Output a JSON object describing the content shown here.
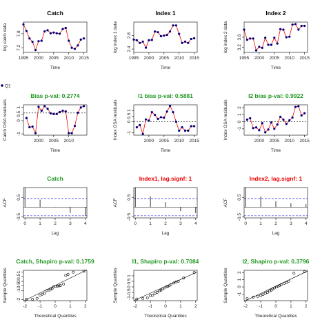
{
  "colors": {
    "green": "#229922",
    "red": "#ee0000",
    "black": "#000000",
    "blue": "#0000dd",
    "navy": "#000060",
    "pointfill": "#000080"
  },
  "legend": {
    "label": "Q1"
  },
  "chart_data": [
    {
      "type": "line",
      "title": "Catch",
      "title_color": "black",
      "xlabel": "Time",
      "ylabel": "log catch data",
      "xlim": [
        1995,
        2016
      ],
      "ylim": [
        7.0,
        8.3
      ],
      "xticks": [
        1995,
        2000,
        2005,
        2010,
        2015
      ],
      "yticks": [
        7.2,
        7.8
      ],
      "x": [
        1995,
        1996,
        1997,
        1998,
        1999,
        2000,
        2001,
        2002,
        2003,
        2004,
        2005,
        2006,
        2007,
        2008,
        2009,
        2010,
        2011,
        2012,
        2013,
        2014,
        2015
      ],
      "y": [
        8.2,
        7.92,
        7.6,
        7.45,
        7.1,
        7.48,
        7.5,
        7.9,
        7.95,
        7.82,
        7.85,
        7.82,
        7.8,
        8.0,
        8.05,
        7.5,
        7.2,
        7.15,
        7.3,
        7.55,
        7.6
      ]
    },
    {
      "type": "line",
      "title": "Index 1",
      "title_color": "black",
      "xlabel": "Time",
      "ylabel": "log index 1 data",
      "xlim": [
        1995,
        2016
      ],
      "ylim": [
        2.3,
        3.2
      ],
      "xticks": [
        1995,
        2000,
        2005,
        2010,
        2015
      ],
      "yticks": [
        2.4,
        2.8
      ],
      "x": [
        1995,
        1996,
        1997,
        1998,
        1999,
        2000,
        2001,
        2002,
        2003,
        2004,
        2005,
        2006,
        2007,
        2008,
        2009,
        2010,
        2011,
        2012,
        2013,
        2014,
        2015
      ],
      "y": [
        2.68,
        2.66,
        2.58,
        2.62,
        2.44,
        2.66,
        2.67,
        2.92,
        2.9,
        2.78,
        2.8,
        2.82,
        2.92,
        3.1,
        3.1,
        2.85,
        2.58,
        2.62,
        2.58,
        2.7,
        2.72
      ]
    },
    {
      "type": "line",
      "title": "Index 2",
      "title_color": "black",
      "xlabel": "Time",
      "ylabel": "log index 2 data",
      "xlim": [
        1995,
        2016
      ],
      "ylim": [
        3.0,
        4.2
      ],
      "xticks": [
        1995,
        2000,
        2005,
        2010,
        2015
      ],
      "yticks": [
        3.2,
        3.6
      ],
      "x": [
        1995,
        1996,
        1997,
        1998,
        1999,
        2000,
        2001,
        2002,
        2003,
        2004,
        2005,
        2006,
        2007,
        2008,
        2009,
        2010,
        2011,
        2012,
        2013,
        2014,
        2015
      ],
      "y": [
        3.9,
        3.5,
        3.55,
        3.55,
        3.08,
        3.22,
        3.18,
        3.58,
        3.3,
        3.3,
        3.58,
        3.35,
        3.92,
        3.9,
        3.6,
        3.62,
        4.1,
        4.12,
        3.9,
        4.05,
        4.05
      ]
    },
    {
      "type": "line",
      "title": "Bias p-val: 0.2774",
      "title_color": "green",
      "xlabel": "Time",
      "ylabel": "Catch OSA residuals",
      "xlim": [
        1995,
        2016
      ],
      "ylim": [
        -1.1,
        1.2
      ],
      "xticks": [
        2000,
        2005,
        2010
      ],
      "yticks": [
        -1.0,
        0.0,
        0.5,
        1.0
      ],
      "x": [
        1996,
        1997,
        1998,
        1999,
        2000,
        2001,
        2002,
        2003,
        2004,
        2005,
        2006,
        2007,
        2008,
        2009,
        2010,
        2011,
        2012,
        2013,
        2014,
        2015
      ],
      "y": [
        0.2,
        -0.5,
        -0.45,
        -0.95,
        1.05,
        0.75,
        1.1,
        0.9,
        0.55,
        0.5,
        0.5,
        0.65,
        0.75,
        0.7,
        -0.95,
        -0.95,
        -0.4,
        0.6,
        1.0,
        1.1
      ],
      "hline": 0.58
    },
    {
      "type": "line",
      "title": "I1 bias p-val: 0.5881",
      "title_color": "green",
      "xlabel": "Time",
      "ylabel": "Index OSA residuals",
      "xlim": [
        1995,
        2016
      ],
      "ylim": [
        -1.2,
        1.5
      ],
      "xticks": [
        2000,
        2005,
        2010,
        2015
      ],
      "yticks": [
        -1.0,
        0.0,
        0.5,
        1.0
      ],
      "x": [
        1996,
        1997,
        1998,
        1999,
        2000,
        2001,
        2002,
        2003,
        2004,
        2005,
        2006,
        2007,
        2008,
        2009,
        2010,
        2011,
        2012,
        2013,
        2014,
        2015
      ],
      "y": [
        -0.5,
        -0.3,
        -1.1,
        0.2,
        0.1,
        0.85,
        0.6,
        0.25,
        0.4,
        0.35,
        0.9,
        1.4,
        0.85,
        0.0,
        -0.8,
        -0.5,
        -0.8,
        -0.8,
        -0.4,
        -0.4
      ],
      "hline": 0.0
    },
    {
      "type": "line",
      "title": "I2 bias p-val: 0.9922",
      "title_color": "green",
      "xlabel": "Time",
      "ylabel": "Index OSA residuals",
      "xlim": [
        1995,
        2016
      ],
      "ylim": [
        -1.9,
        2.4
      ],
      "xticks": [
        2000,
        2005,
        2010,
        2015
      ],
      "yticks": [
        -1,
        0,
        1,
        2
      ],
      "x": [
        1996,
        1997,
        1998,
        1999,
        2000,
        2001,
        2002,
        2003,
        2004,
        2005,
        2006,
        2007,
        2008,
        2009,
        2010,
        2011,
        2012,
        2013,
        2014,
        2015
      ],
      "y": [
        0.3,
        0.5,
        -0.9,
        -0.8,
        -1.2,
        -0.2,
        -1.5,
        -1.1,
        -0.1,
        -1.0,
        -0.4,
        0.7,
        0.3,
        -0.3,
        0.2,
        0.6,
        2.1,
        2.2,
        0.9,
        1.2
      ],
      "hline": 0.0
    },
    {
      "type": "bar",
      "title": "Catch",
      "title_color": "green",
      "xlabel": "Lag",
      "ylabel": "ACF",
      "xlim": [
        -0.1,
        4.1
      ],
      "ylim": [
        -0.55,
        1.0
      ],
      "xticks": [
        0,
        1,
        2,
        3,
        4
      ],
      "yticks": [
        -0.5,
        0.5
      ],
      "lags": [
        0,
        1,
        2,
        3,
        4
      ],
      "values": [
        1.0,
        0.38,
        0.02,
        -0.3,
        -0.45
      ],
      "ci": 0.44
    },
    {
      "type": "bar",
      "title": "Index1, lag.signf: 1",
      "title_color": "red",
      "xlabel": "Lag",
      "ylabel": "ACF",
      "xlim": [
        -0.1,
        4.1
      ],
      "ylim": [
        -0.55,
        1.0
      ],
      "xticks": [
        0,
        1,
        2,
        3,
        4
      ],
      "yticks": [
        -0.5,
        0.5
      ],
      "lags": [
        0,
        1,
        2,
        3,
        4
      ],
      "values": [
        1.0,
        0.55,
        0.25,
        -0.2,
        -0.3
      ],
      "ci": 0.44
    },
    {
      "type": "bar",
      "title": "Index2, lag.signf: 1",
      "title_color": "red",
      "xlabel": "Lag",
      "ylabel": "ACF",
      "xlim": [
        -0.1,
        4.1
      ],
      "ylim": [
        -0.55,
        1.0
      ],
      "xticks": [
        0,
        1,
        2,
        3,
        4
      ],
      "yticks": [
        -0.5,
        0.5
      ],
      "lags": [
        0,
        1,
        2,
        3,
        4
      ],
      "values": [
        1.0,
        0.55,
        0.3,
        0.2,
        0.15
      ],
      "ci": 0.44
    },
    {
      "type": "scatter",
      "title": "Catch, Shapiro p-val: 0.1759",
      "title_color": "green",
      "xlabel": "Theoretical Quantiles",
      "ylabel": "Sample Quantiles",
      "xlim": [
        -2.1,
        2.1
      ],
      "ylim": [
        -2.1,
        1.2
      ],
      "xticks": [
        -2,
        -1,
        0,
        1,
        2
      ],
      "yticks": [
        -2.0,
        -1.0,
        -0.5,
        0.0,
        0.5,
        1.0
      ],
      "x": [
        -1.9,
        -1.5,
        -1.2,
        -1.0,
        -0.85,
        -0.7,
        -0.55,
        -0.4,
        -0.3,
        -0.2,
        -0.1,
        0.05,
        0.15,
        0.25,
        0.35,
        0.55,
        0.7,
        0.85,
        1.2,
        1.9
      ],
      "y": [
        -1.95,
        -1.95,
        -1.85,
        -1.5,
        -1.4,
        -1.3,
        -1.0,
        -0.95,
        -0.85,
        -0.8,
        -0.6,
        -0.55,
        -0.5,
        -0.5,
        -0.45,
        -0.3,
        0.65,
        0.75,
        1.0,
        1.1
      ],
      "ref_line": [
        [
          -2.1,
          -2.15
        ],
        [
          2.1,
          1.25
        ]
      ]
    },
    {
      "type": "scatter",
      "title": "I1, Shapiro p-val: 0.7084",
      "title_color": "green",
      "xlabel": "Theoretical Quantiles",
      "ylabel": "Sample Quantiles",
      "xlim": [
        -2.1,
        2.1
      ],
      "ylim": [
        -1.25,
        1.5
      ],
      "xticks": [
        -2,
        -1,
        0,
        1,
        2
      ],
      "yticks": [
        -1.0,
        -0.5,
        0.0,
        0.5,
        1.0
      ],
      "x": [
        -1.9,
        -1.5,
        -1.2,
        -1.0,
        -0.85,
        -0.7,
        -0.55,
        -0.4,
        -0.3,
        -0.2,
        -0.1,
        0.05,
        0.15,
        0.25,
        0.35,
        0.55,
        0.7,
        0.85,
        1.2,
        1.9
      ],
      "y": [
        -1.1,
        -1.05,
        -1.0,
        -0.8,
        -0.75,
        -0.6,
        -0.5,
        -0.35,
        -0.3,
        -0.2,
        -0.1,
        0.0,
        0.05,
        0.1,
        0.2,
        0.35,
        0.45,
        0.5,
        0.8,
        1.3
      ],
      "ref_line": [
        [
          -2.1,
          -1.25
        ],
        [
          2.1,
          1.35
        ]
      ]
    },
    {
      "type": "scatter",
      "title": "I2, Shapiro p-val: 0.3796",
      "title_color": "green",
      "xlabel": "Theoretical Quantiles",
      "ylabel": "Sample Quantiles",
      "xlim": [
        -2.1,
        2.1
      ],
      "ylim": [
        -1.9,
        2.3
      ],
      "xticks": [
        -2,
        -1,
        0,
        1,
        2
      ],
      "yticks": [
        -1,
        0,
        1,
        2
      ],
      "x": [
        -1.9,
        -1.5,
        -1.2,
        -1.0,
        -0.85,
        -0.7,
        -0.55,
        -0.4,
        -0.3,
        -0.2,
        -0.1,
        0.05,
        0.15,
        0.25,
        0.35,
        0.55,
        0.7,
        0.85,
        1.2,
        1.9
      ],
      "y": [
        -1.6,
        -1.4,
        -1.3,
        -1.2,
        -1.05,
        -0.9,
        -0.75,
        -0.55,
        -0.45,
        -0.3,
        -0.15,
        0.0,
        0.1,
        0.2,
        0.3,
        0.5,
        0.6,
        0.8,
        1.9,
        2.1
      ],
      "ref_line": [
        [
          -2.1,
          -2.0
        ],
        [
          2.1,
          2.2
        ]
      ]
    }
  ]
}
